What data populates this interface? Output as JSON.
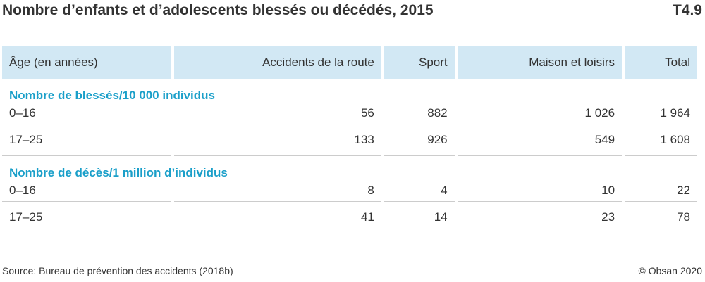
{
  "title": "Nombre d’enfants et d’adolescents blessés ou décédés, 2015",
  "code": "T4.9",
  "headers": [
    "Âge (en années)",
    "Accidents de la route",
    "Sport",
    "Maison et loisirs",
    "Total"
  ],
  "sections": [
    {
      "label": "Nombre de blessés/10 000 individus",
      "rows": [
        [
          "0–16",
          "56",
          "882",
          "1 026",
          "1 964"
        ],
        [
          "17–25",
          "133",
          "926",
          "549",
          "1 608"
        ]
      ]
    },
    {
      "label": "Nombre de décès/1 million d’individus",
      "rows": [
        [
          "0–16",
          "8",
          "4",
          "10",
          "22"
        ],
        [
          "17–25",
          "41",
          "14",
          "23",
          "78"
        ]
      ]
    }
  ],
  "source": "Source: Bureau de prévention des accidents (2018b)",
  "copyright": "© Obsan 2020",
  "colors": {
    "header_bg": "#d2e8f4",
    "accent": "#1a9fc9"
  }
}
